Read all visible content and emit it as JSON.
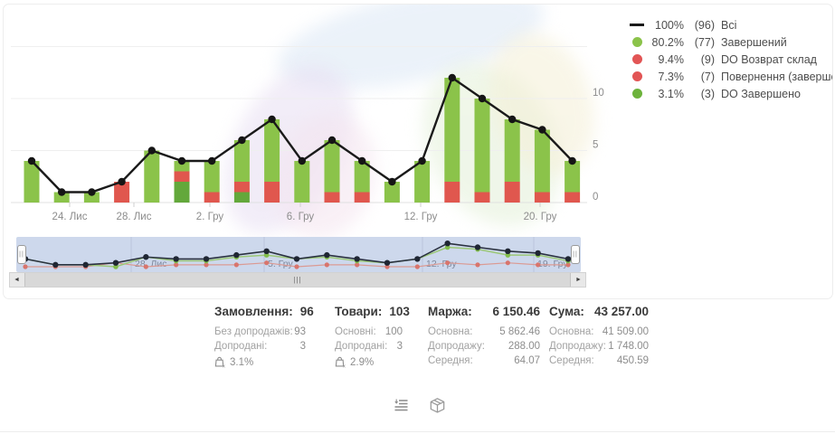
{
  "chart_data": {
    "type": "bar",
    "stacked": true,
    "x": [
      1,
      2,
      3,
      4,
      5,
      6,
      7,
      8,
      9,
      10,
      11,
      12,
      13,
      14,
      15,
      16,
      17,
      18,
      19
    ],
    "x_tick_labels": [
      "24. Лис",
      "28. Лис",
      "2. Гру",
      "6. Гру",
      "12. Гру",
      "20. Гру"
    ],
    "y_ticks": [
      "0",
      "5",
      "10"
    ],
    "ylim": [
      0,
      15
    ],
    "grid": "horizontal",
    "legend_position": "top-right",
    "series": [
      {
        "name": "Всі",
        "type": "line",
        "color": "#1a1a1a",
        "values": [
          4,
          1,
          1,
          2,
          5,
          4,
          4,
          6,
          8,
          4,
          6,
          4,
          2,
          4,
          12,
          10,
          8,
          7,
          4
        ],
        "total": 96
      },
      {
        "name": "Завершений",
        "type": "bar",
        "color": "#8bc34a",
        "values": [
          4,
          1,
          1,
          0,
          5,
          1,
          3,
          4,
          6,
          4,
          5,
          3,
          2,
          4,
          10,
          9,
          6,
          6,
          3
        ],
        "total": 77
      },
      {
        "name": "DO Возврат склад / Повернення (завершений)",
        "type": "bar",
        "color": "#e0574e",
        "values": [
          0,
          0,
          0,
          2,
          0,
          1,
          1,
          1,
          2,
          0,
          1,
          1,
          0,
          0,
          2,
          1,
          2,
          1,
          1
        ],
        "total": 16
      },
      {
        "name": "DO Завершено",
        "type": "bar",
        "color": "#63a83b",
        "values": [
          0,
          0,
          0,
          0,
          0,
          2,
          0,
          1,
          0,
          0,
          0,
          0,
          0,
          0,
          0,
          0,
          0,
          0,
          0
        ],
        "total": 3
      }
    ]
  },
  "legend": {
    "items": [
      {
        "marker": "line",
        "color": "#1a1a1a",
        "pct": "100%",
        "count": "(96)",
        "label": "Всі"
      },
      {
        "marker": "dot",
        "color": "#8bc34a",
        "pct": "80.2%",
        "count": "(77)",
        "label": "Завершений"
      },
      {
        "marker": "dot",
        "color": "#e25555",
        "pct": "9.4%",
        "count": "(9)",
        "label": "DO Возврат склад"
      },
      {
        "marker": "dot",
        "color": "#e25555",
        "pct": "7.3%",
        "count": "(7)",
        "label": "Повернення (завершений)"
      },
      {
        "marker": "dot",
        "color": "#6db33c",
        "pct": "3.1%",
        "count": "(3)",
        "label": "DO Завершено"
      }
    ]
  },
  "navigator": {
    "tick_labels": [
      "28. Лис",
      "5. Гру",
      "12. Гру",
      "19. Гру"
    ],
    "selection_color": "#cdd8ec"
  },
  "icons": {
    "left_arrow": "◄",
    "right_arrow": "►",
    "thumb_grip": "|||",
    "handle_grip": "||"
  },
  "stats": {
    "blocks": [
      {
        "title": "Замовлення:",
        "value": "96",
        "rows": [
          {
            "label": "Без допродажів:",
            "value": "93"
          },
          {
            "label": "Допродані:",
            "value": "3"
          }
        ],
        "badge": "3.1%"
      },
      {
        "title": "Товари:",
        "value": "103",
        "rows": [
          {
            "label": "Основні:",
            "value": "100"
          },
          {
            "label": "Допродані:",
            "value": "3"
          }
        ],
        "badge": "2.9%"
      },
      {
        "title": "Маржа:",
        "value": "6 150.46",
        "rows": [
          {
            "label": "Основна:",
            "value": "5 862.46"
          },
          {
            "label": "Допродажу:",
            "value": "288.00"
          },
          {
            "label": "Середня:",
            "value": "64.07"
          }
        ],
        "badge": null
      },
      {
        "title": "Сума:",
        "value": "43 257.00",
        "rows": [
          {
            "label": "Основна:",
            "value": "41 509.00"
          },
          {
            "label": "Допродажу:",
            "value": "1 748.00"
          },
          {
            "label": "Середня:",
            "value": "450.59"
          }
        ],
        "badge": null
      }
    ]
  }
}
